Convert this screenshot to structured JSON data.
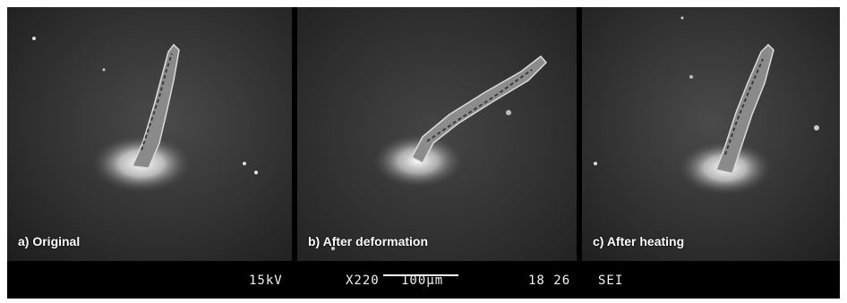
{
  "panels": [
    {
      "caption": "a) Original"
    },
    {
      "caption": "b) After deformation"
    },
    {
      "caption": "c) After heating"
    }
  ],
  "databar": {
    "voltage": "15kV",
    "magnification": "X220",
    "scale_label": "100µm",
    "sample_id": "18 26",
    "detector": "SEI"
  }
}
